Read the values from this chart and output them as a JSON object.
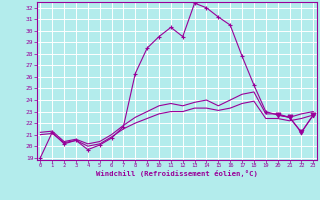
{
  "xlabel": "Windchill (Refroidissement éolien,°C)",
  "hours": [
    0,
    1,
    2,
    3,
    4,
    5,
    6,
    7,
    8,
    9,
    10,
    11,
    12,
    13,
    14,
    15,
    16,
    17,
    18,
    19,
    20,
    21,
    22,
    23
  ],
  "windchill": [
    19.0,
    21.2,
    20.2,
    20.5,
    19.7,
    20.1,
    20.7,
    21.7,
    26.3,
    28.5,
    29.5,
    30.3,
    29.5,
    32.4,
    32.0,
    31.2,
    30.5,
    27.8,
    25.3,
    23.0,
    22.7,
    22.5,
    21.2,
    22.7
  ],
  "temp1": [
    21.2,
    21.3,
    20.4,
    20.6,
    20.2,
    20.4,
    21.0,
    21.8,
    22.5,
    23.0,
    23.5,
    23.7,
    23.5,
    23.8,
    24.0,
    23.5,
    24.0,
    24.5,
    24.7,
    22.8,
    22.8,
    22.5,
    22.8,
    23.0
  ],
  "temp2": [
    21.0,
    21.1,
    20.3,
    20.5,
    20.0,
    20.2,
    20.8,
    21.5,
    22.0,
    22.4,
    22.8,
    23.0,
    23.0,
    23.3,
    23.3,
    23.1,
    23.3,
    23.7,
    23.9,
    22.4,
    22.4,
    22.2,
    22.4,
    22.7
  ],
  "line_color": "#990099",
  "bg_color": "#b3ecec",
  "grid_color": "#c8e8e8",
  "ylim_min": 19,
  "ylim_max": 32.5,
  "yticks": [
    19,
    20,
    21,
    22,
    23,
    24,
    25,
    26,
    27,
    28,
    29,
    30,
    31,
    32
  ],
  "xlim_min": 0,
  "xlim_max": 23
}
